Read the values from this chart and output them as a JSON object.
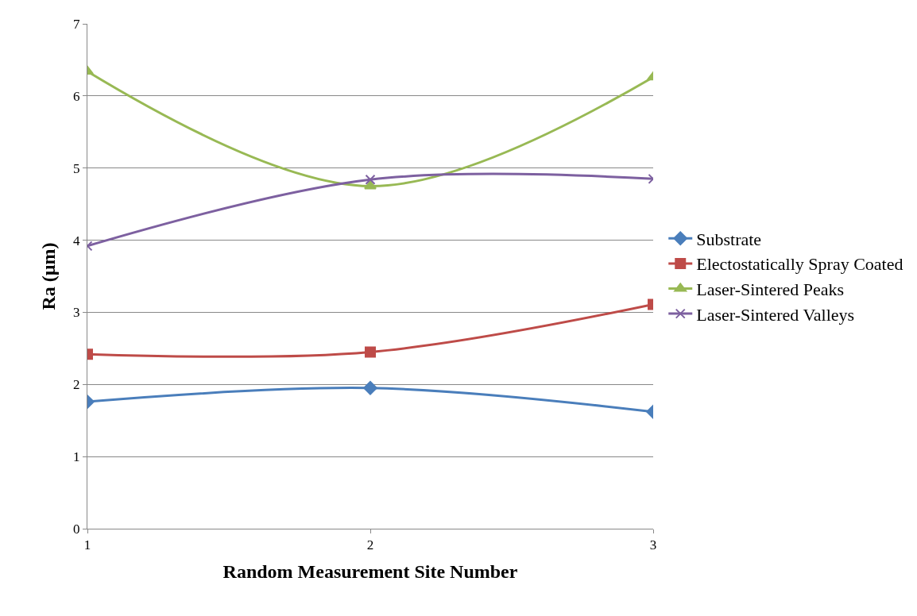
{
  "chart_data": {
    "type": "line",
    "xlabel": "Random Measurement Site Number",
    "ylabel": "Ra (µm)",
    "x": [
      1,
      2,
      3
    ],
    "xlim": [
      1,
      3
    ],
    "xticks": [
      1,
      2,
      3
    ],
    "ylim": [
      0,
      7
    ],
    "yticks": [
      0,
      1,
      2,
      3,
      4,
      5,
      6,
      7
    ],
    "grid": "y",
    "legend": "right",
    "series": [
      {
        "name": "Substrate",
        "color": "#4a7ebb",
        "marker": "diamond",
        "values": [
          1.76,
          1.95,
          1.62
        ]
      },
      {
        "name": "Electostatically Spray Coated",
        "color": "#be4b48",
        "marker": "square",
        "values": [
          2.42,
          2.45,
          3.11
        ]
      },
      {
        "name": "Laser-Sintered Peaks",
        "color": "#98b954",
        "marker": "triangle",
        "values": [
          6.34,
          4.75,
          6.26
        ]
      },
      {
        "name": "Laser-Sintered Valleys",
        "color": "#7d60a0",
        "marker": "cross",
        "values": [
          3.92,
          4.84,
          4.85
        ]
      }
    ]
  }
}
